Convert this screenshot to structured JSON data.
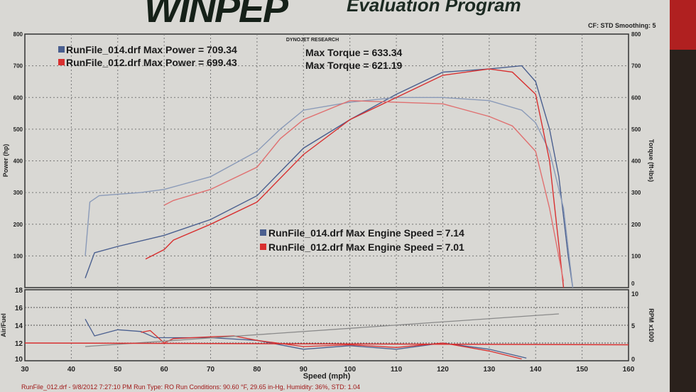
{
  "header": {
    "logo": "WINPEP",
    "subtitle": "Evaluation Program",
    "conditions": "CF: STD  Smoothing: 5",
    "brand": "DYNOJET RESEARCH"
  },
  "footer": "RunFile_012.drf - 9/8/2012 7:27:10 PM  Run Type: RO  Run Conditions: 90.60 °F, 29.65 in-Hg,  Humidity: 36%, STD: 1.04",
  "colors": {
    "run014": "#4a5f8f",
    "run014_light": "#8a9ab8",
    "run012": "#d83030",
    "run012_light": "#e07070",
    "rpm": "#8a8a8a"
  },
  "chart_data": [
    {
      "type": "line",
      "title": "DYNOJET RESEARCH",
      "xlabel": "Speed (mph)",
      "ylabel": "Power (hp)",
      "y2label": "Torque (ft-lbs)",
      "xlim": [
        30,
        160
      ],
      "ylim": [
        0,
        800
      ],
      "y2lim": [
        0,
        800
      ],
      "grid": true,
      "xticks": [
        30,
        40,
        50,
        60,
        70,
        80,
        90,
        100,
        110,
        120,
        130,
        140,
        150,
        160
      ],
      "yticks": [
        100,
        200,
        300,
        400,
        500,
        600,
        700,
        800
      ],
      "y2ticks": [
        0,
        100,
        200,
        300,
        400,
        500,
        600,
        700,
        800
      ],
      "legend": [
        "RunFile_014.drf Max Power = 709.34",
        "RunFile_012.drf Max Power = 699.43"
      ],
      "legend_torque": [
        "Max Torque = 633.34",
        "Max Torque = 621.19"
      ],
      "annotations": [
        "RunFile_014.drf Max Engine Speed = 7.14",
        "RunFile_012.drf Max Engine Speed = 7.01"
      ],
      "series": [
        {
          "name": "RunFile_014 Power",
          "color": "run014",
          "x": [
            43,
            45,
            50,
            60,
            70,
            80,
            90,
            100,
            110,
            120,
            130,
            137,
            140,
            143,
            145,
            147,
            148
          ],
          "y": [
            30,
            110,
            130,
            165,
            215,
            290,
            440,
            530,
            610,
            680,
            690,
            700,
            650,
            500,
            350,
            100,
            0
          ]
        },
        {
          "name": "RunFile_014 Torque",
          "color": "run014_light",
          "x": [
            43,
            44,
            46,
            55,
            60,
            70,
            80,
            85,
            90,
            100,
            110,
            120,
            130,
            137,
            140,
            143,
            146,
            148
          ],
          "y": [
            100,
            270,
            290,
            300,
            310,
            350,
            430,
            500,
            560,
            585,
            600,
            600,
            590,
            560,
            520,
            430,
            250,
            0
          ]
        },
        {
          "name": "RunFile_012 Power",
          "color": "run012",
          "x": [
            56,
            60,
            62,
            70,
            80,
            90,
            100,
            110,
            120,
            130,
            135,
            140,
            143,
            146
          ],
          "y": [
            90,
            120,
            150,
            200,
            270,
            420,
            530,
            600,
            670,
            690,
            680,
            610,
            400,
            0
          ]
        },
        {
          "name": "RunFile_012 Torque",
          "color": "run012_light",
          "x": [
            60,
            62,
            70,
            80,
            85,
            90,
            100,
            110,
            120,
            130,
            135,
            140,
            143,
            146
          ],
          "y": [
            260,
            275,
            310,
            380,
            470,
            530,
            590,
            585,
            580,
            540,
            510,
            430,
            250,
            20
          ]
        }
      ]
    },
    {
      "type": "line",
      "xlabel": "Speed (mph)",
      "ylabel": "Air/Fuel",
      "y2label": "RPM x1000",
      "xlim": [
        30,
        160
      ],
      "ylim": [
        10,
        18
      ],
      "y2lim": [
        0,
        10
      ],
      "grid": true,
      "yticks": [
        10,
        12,
        14,
        16,
        18
      ],
      "y2ticks": [
        0,
        5,
        10
      ],
      "series": [
        {
          "name": "RunFile_014 AFR",
          "color": "run014",
          "x": [
            43,
            45,
            50,
            55,
            58,
            70,
            80,
            90,
            100,
            110,
            120,
            130,
            138
          ],
          "y": [
            14.7,
            12.8,
            13.5,
            13.3,
            12.6,
            12.6,
            12.3,
            11.3,
            11.7,
            11.3,
            12.0,
            11.3,
            10.3
          ]
        },
        {
          "name": "RunFile_012 AFR",
          "color": "run012",
          "x": [
            55,
            57,
            60,
            62,
            70,
            75,
            80,
            90,
            100,
            110,
            120,
            130,
            137
          ],
          "y": [
            13.2,
            13.4,
            12.0,
            12.5,
            12.7,
            12.8,
            12.3,
            11.6,
            11.8,
            11.5,
            12.0,
            11.1,
            10.2
          ]
        },
        {
          "name": "RPM",
          "color": "rpm",
          "axis": "y2",
          "x": [
            43,
            145
          ],
          "y": [
            2.0,
            6.6
          ]
        },
        {
          "name": "AFR Target",
          "color": "run012",
          "x": [
            30,
            160
          ],
          "y": [
            12,
            11.8
          ]
        }
      ]
    }
  ]
}
